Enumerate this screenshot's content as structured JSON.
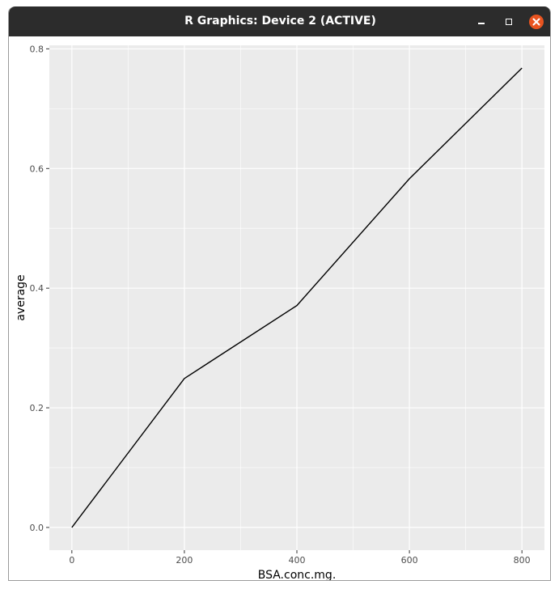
{
  "window": {
    "title": "R Graphics: Device 2 (ACTIVE)",
    "controls": [
      "minimize-icon",
      "maximize-icon",
      "close-icon"
    ],
    "colors": {
      "titlebar": "#2c2c2c",
      "close": "#e95420"
    }
  },
  "chart_data": {
    "type": "line",
    "title": "",
    "xlabel": "BSA.conc.mg.",
    "ylabel": "average",
    "x": [
      0,
      200,
      400,
      600,
      800
    ],
    "series": [
      {
        "values": [
          0.0,
          0.249,
          0.371,
          0.583,
          0.768
        ]
      }
    ],
    "xlim": [
      -40,
      840
    ],
    "ylim": [
      -0.038,
      0.806
    ],
    "xticks": [
      0,
      200,
      400,
      600,
      800
    ],
    "xtick_labels": [
      "0",
      "200",
      "400",
      "600",
      "800"
    ],
    "yticks": [
      0.0,
      0.2,
      0.4,
      0.6,
      0.8
    ],
    "ytick_labels": [
      "0.0",
      "0.2",
      "0.4",
      "0.6",
      "0.8"
    ],
    "x_minor": [
      100,
      300,
      500,
      700
    ],
    "y_minor": [
      0.1,
      0.3,
      0.5,
      0.7
    ],
    "grid": true,
    "theme": "ggplot2 grey",
    "colors": {
      "panel": "#ebebeb",
      "grid": "#ffffff",
      "line": "#000000",
      "ticks": "#4d4d4d"
    }
  }
}
